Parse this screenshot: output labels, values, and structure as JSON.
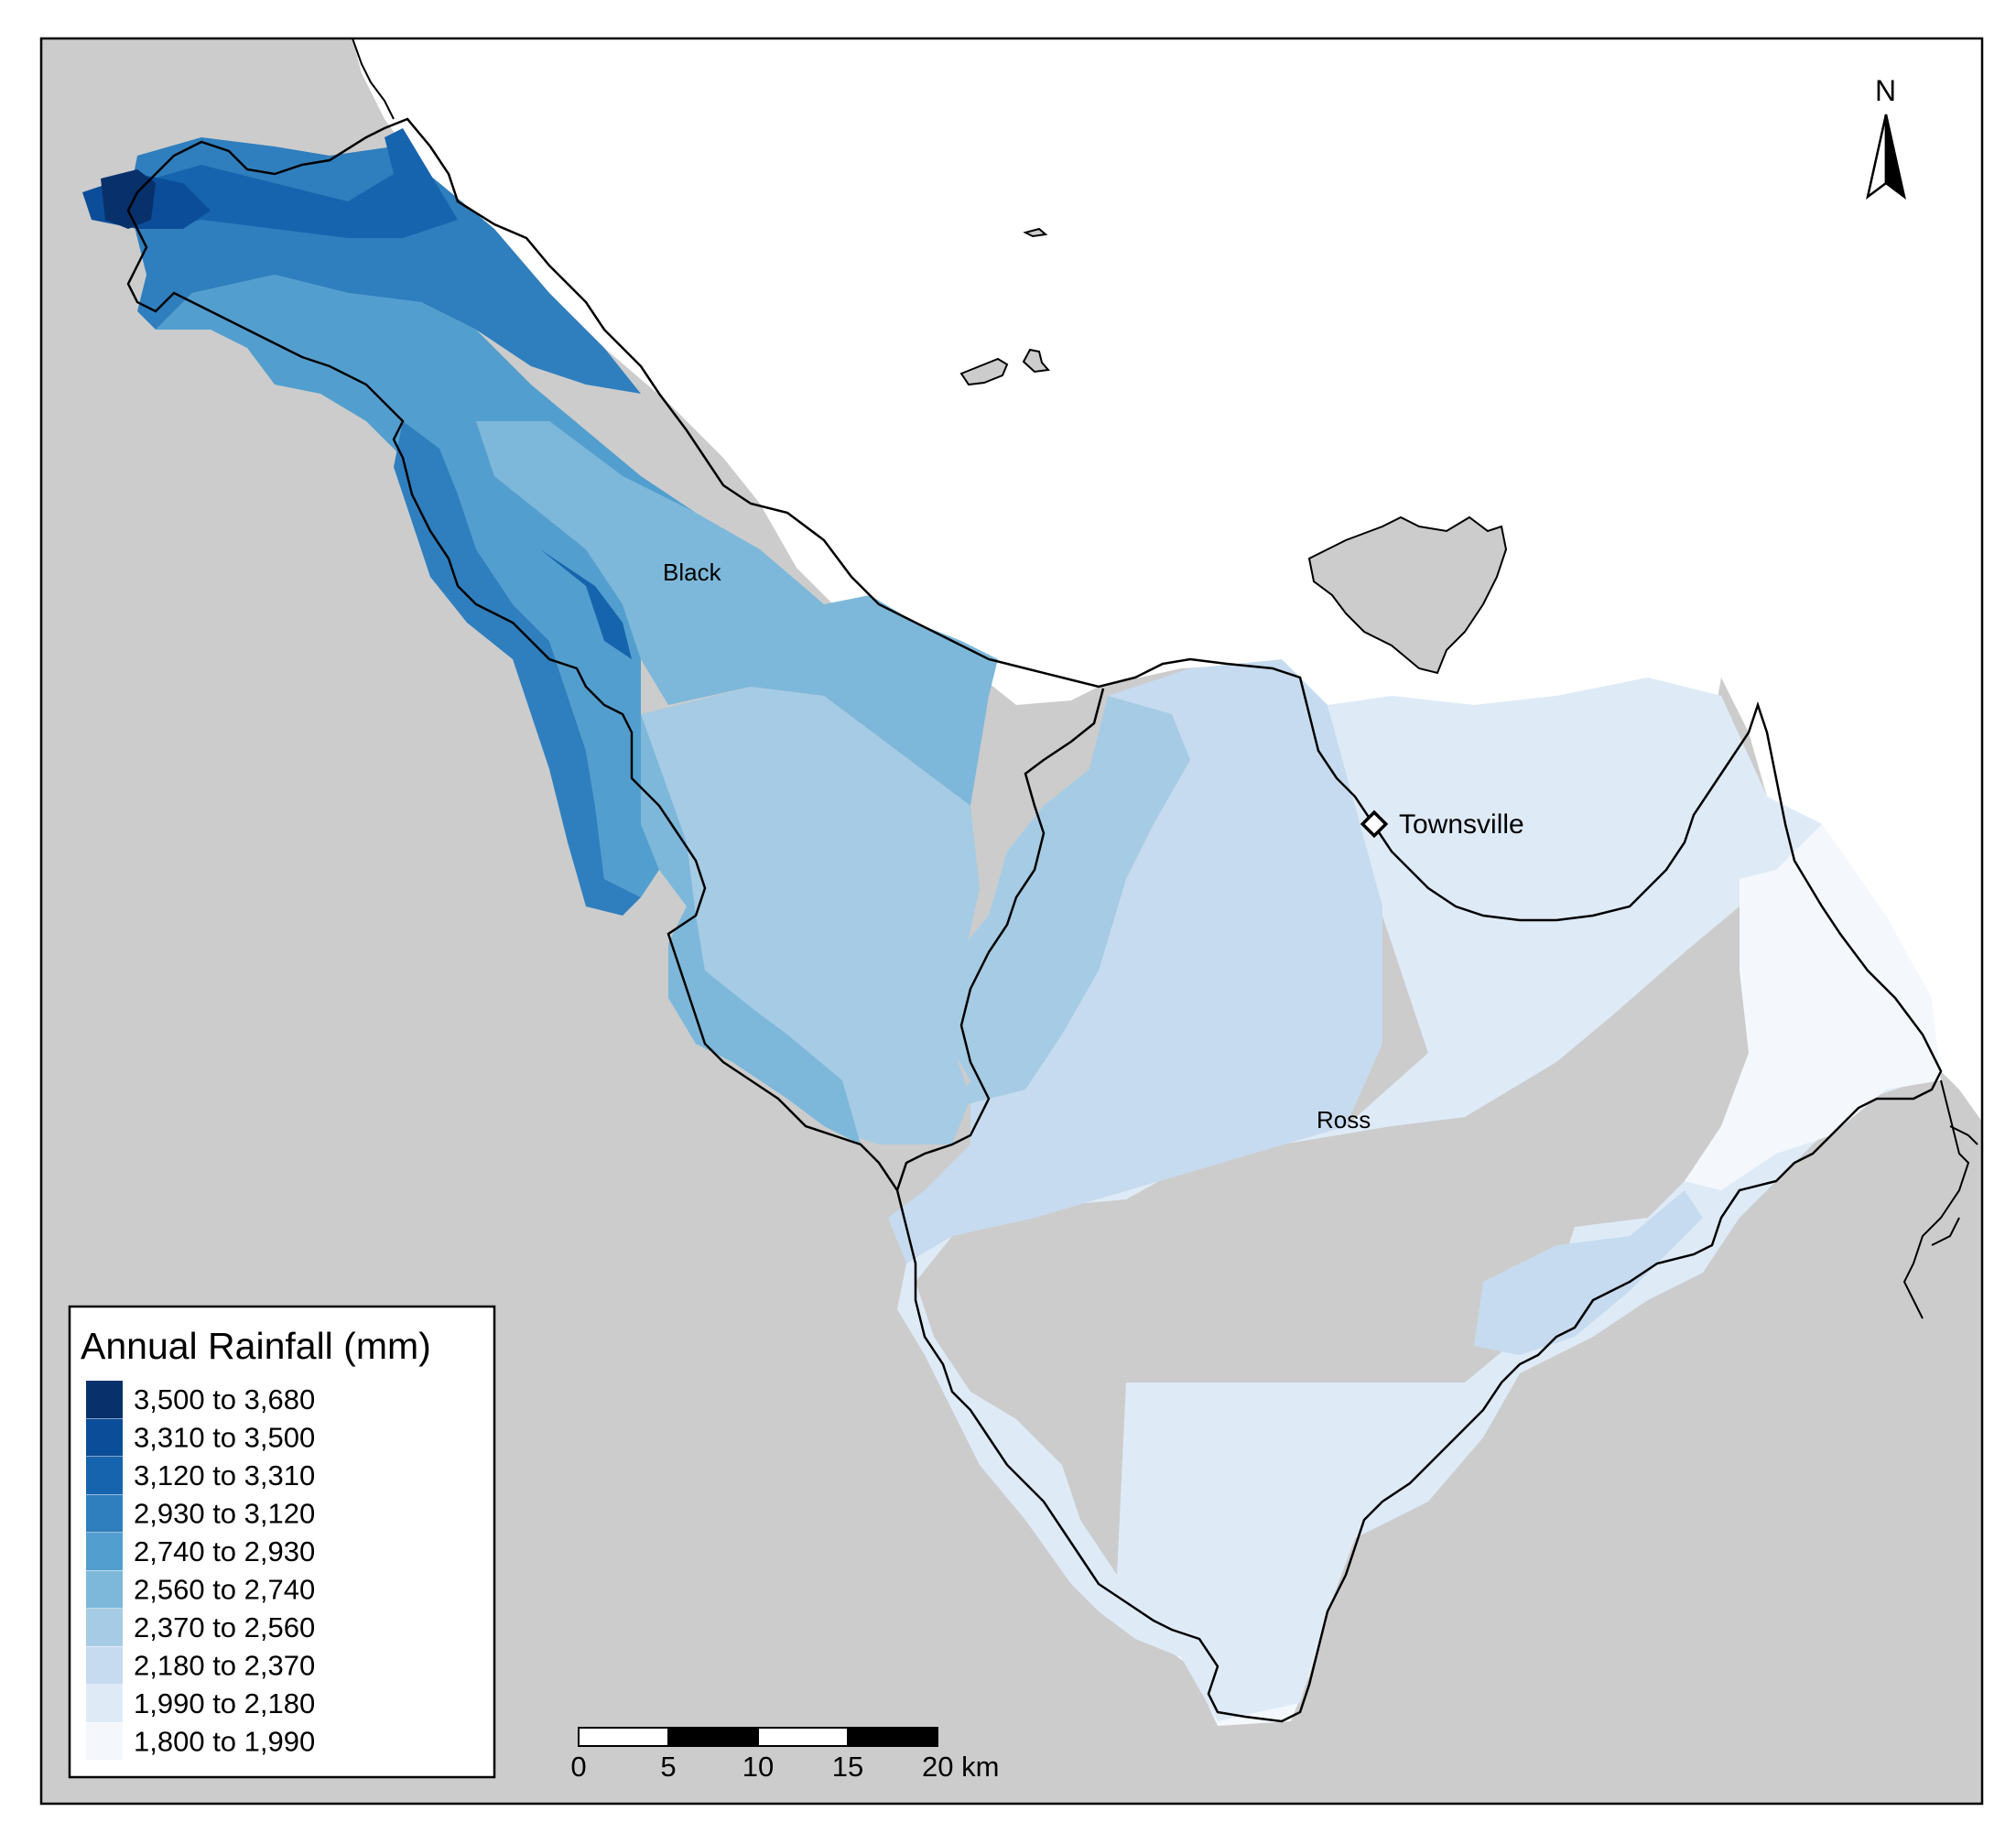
{
  "map": {
    "labels": {
      "catchment_1": "Black",
      "catchment_2": "Ross",
      "city": "Townsville"
    },
    "north_label": "N"
  },
  "legend": {
    "title": "Annual Rainfall (mm)",
    "classes": [
      {
        "label": "3,500 to 3,680",
        "color": "#08306b"
      },
      {
        "label": "3,310 to 3,500",
        "color": "#0b4d98"
      },
      {
        "label": "3,120 to 3,310",
        "color": "#1764ae"
      },
      {
        "label": "2,930 to 3,120",
        "color": "#2f7fbe"
      },
      {
        "label": "2,740 to 2,930",
        "color": "#529fcf"
      },
      {
        "label": "2,560 to 2,740",
        "color": "#7db8da"
      },
      {
        "label": "2,370 to 2,560",
        "color": "#a6cbe4"
      },
      {
        "label": "2,180 to 2,370",
        "color": "#c6dbef"
      },
      {
        "label": "1,990 to 2,180",
        "color": "#deebf7"
      },
      {
        "label": "1,800 to 1,990",
        "color": "#f4f8fd"
      }
    ]
  },
  "scale_bar": {
    "ticks": [
      "0",
      "5",
      "10",
      "15",
      "20 km"
    ]
  },
  "colors": {
    "land": "#cccccc",
    "sea": "#ffffff",
    "boundary": "#000000"
  }
}
